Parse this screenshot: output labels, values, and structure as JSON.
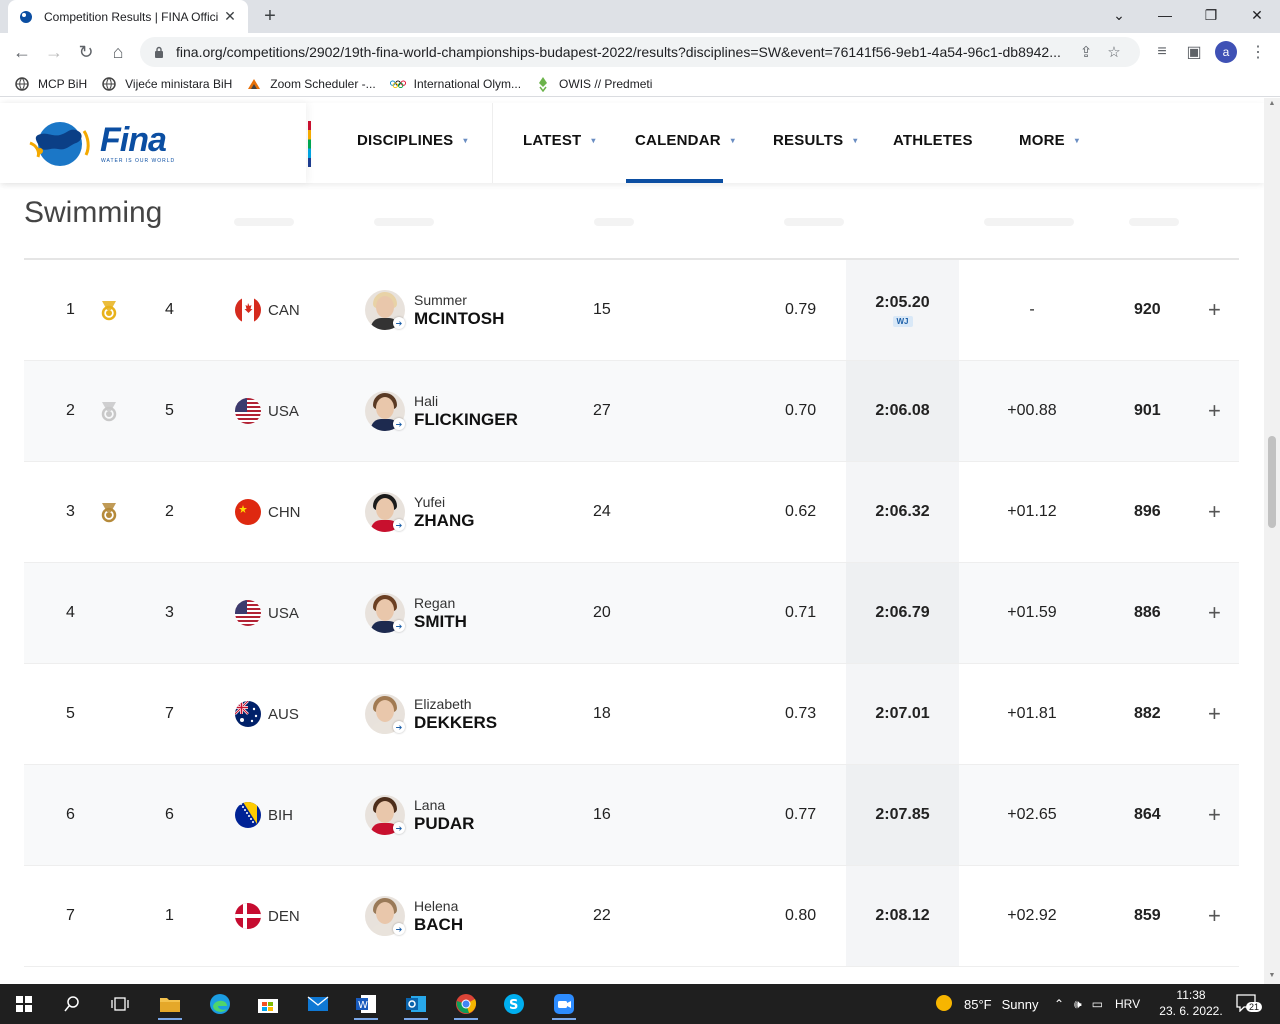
{
  "browser": {
    "tab_title": "Competition Results | FINA Offici",
    "tab_close": "✕",
    "new_tab": "+",
    "url": "fina.org/competitions/2902/19th-fina-world-championships-budapest-2022/results?disciplines=SW&event=76141f56-9eb1-4a54-96c1-db8942...",
    "avatar_letter": "a",
    "bookmarks": [
      {
        "label": "MCP BiH",
        "icon": "globe-icon"
      },
      {
        "label": "Vijeće ministara BiH",
        "icon": "globe-icon"
      },
      {
        "label": "Zoom Scheduler -...",
        "icon": "zoom-icon"
      },
      {
        "label": "International Olym...",
        "icon": "olympic-rings-icon"
      },
      {
        "label": "OWIS // Predmeti",
        "icon": "owis-icon"
      }
    ]
  },
  "site": {
    "logo_text": "Fina",
    "logo_tagline": "WATER IS OUR WORLD",
    "nav": [
      {
        "label": "DISCIPLINES",
        "caret": true
      },
      {
        "label": "LATEST",
        "caret": true
      },
      {
        "label": "CALENDAR",
        "caret": true,
        "active": true
      },
      {
        "label": "RESULTS",
        "caret": true
      },
      {
        "label": "ATHLETES",
        "caret": false
      },
      {
        "label": "MORE",
        "caret": true
      }
    ],
    "page_title": "Swimming"
  },
  "results": [
    {
      "rank": "1",
      "medal": "gold",
      "lane": "4",
      "country": "CAN",
      "first": "Summer",
      "last": "MCINTOSH",
      "age": "15",
      "reaction": "0.79",
      "time": "2:05.20",
      "badge": "WJ",
      "behind": "-",
      "points": "920"
    },
    {
      "rank": "2",
      "medal": "silver",
      "lane": "5",
      "country": "USA",
      "first": "Hali",
      "last": "FLICKINGER",
      "age": "27",
      "reaction": "0.70",
      "time": "2:06.08",
      "badge": "",
      "behind": "+00.88",
      "points": "901"
    },
    {
      "rank": "3",
      "medal": "bronze",
      "lane": "2",
      "country": "CHN",
      "first": "Yufei",
      "last": "ZHANG",
      "age": "24",
      "reaction": "0.62",
      "time": "2:06.32",
      "badge": "",
      "behind": "+01.12",
      "points": "896"
    },
    {
      "rank": "4",
      "medal": "",
      "lane": "3",
      "country": "USA",
      "first": "Regan",
      "last": "SMITH",
      "age": "20",
      "reaction": "0.71",
      "time": "2:06.79",
      "badge": "",
      "behind": "+01.59",
      "points": "886"
    },
    {
      "rank": "5",
      "medal": "",
      "lane": "7",
      "country": "AUS",
      "first": "Elizabeth",
      "last": "DEKKERS",
      "age": "18",
      "reaction": "0.73",
      "time": "2:07.01",
      "badge": "",
      "behind": "+01.81",
      "points": "882"
    },
    {
      "rank": "6",
      "medal": "",
      "lane": "6",
      "country": "BIH",
      "first": "Lana",
      "last": "PUDAR",
      "age": "16",
      "reaction": "0.77",
      "time": "2:07.85",
      "badge": "",
      "behind": "+02.65",
      "points": "864"
    },
    {
      "rank": "7",
      "medal": "",
      "lane": "1",
      "country": "DEN",
      "first": "Helena",
      "last": "BACH",
      "age": "22",
      "reaction": "0.80",
      "time": "2:08.12",
      "badge": "",
      "behind": "+02.92",
      "points": "859"
    }
  ],
  "colors": {
    "brand": "#0b4ea2",
    "gold": "#e8b21b",
    "silver": "#c8c8c8",
    "bronze": "#b58a3a"
  },
  "taskbar": {
    "apps": [
      "windows-start-icon",
      "search-icon",
      "task-view-icon",
      "file-explorer-icon",
      "edge-icon",
      "store-icon",
      "mail-icon",
      "word-icon",
      "outlook-icon",
      "chrome-icon",
      "skype-icon",
      "zoom-icon"
    ],
    "weather_temp": "85°F",
    "weather_text": "Sunny",
    "language": "HRV",
    "time": "11:38",
    "date": "23. 6. 2022.",
    "notifications": "21"
  }
}
